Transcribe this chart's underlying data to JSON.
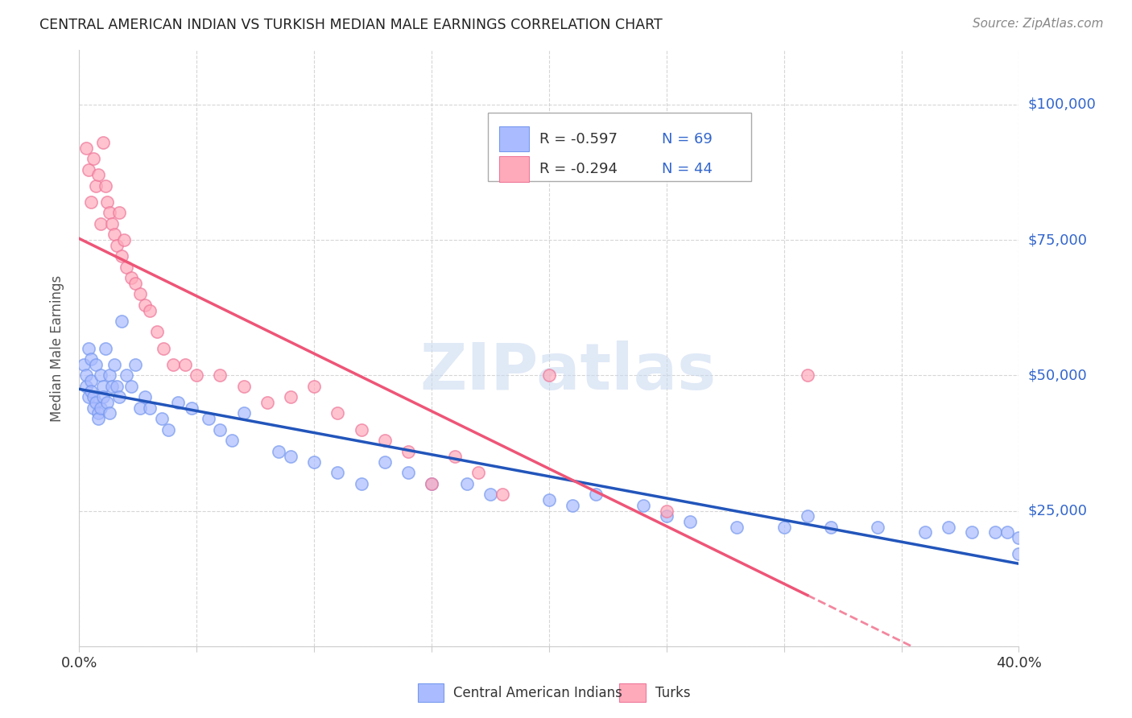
{
  "title": "CENTRAL AMERICAN INDIAN VS TURKISH MEDIAN MALE EARNINGS CORRELATION CHART",
  "source": "Source: ZipAtlas.com",
  "ylabel": "Median Male Earnings",
  "xlim": [
    0.0,
    0.4
  ],
  "ylim": [
    0,
    110000
  ],
  "yticks": [
    0,
    25000,
    50000,
    75000,
    100000
  ],
  "xticks": [
    0.0,
    0.05,
    0.1,
    0.15,
    0.2,
    0.25,
    0.3,
    0.35,
    0.4
  ],
  "background_color": "#ffffff",
  "grid_color": "#cccccc",
  "blue_face_color": "#aabbff",
  "blue_edge_color": "#7799ee",
  "pink_face_color": "#ffaabb",
  "pink_edge_color": "#ee7799",
  "blue_line_color": "#2255bb",
  "pink_line_color": "#ee5577",
  "watermark": "ZIPatlas",
  "legend_R1": "-0.597",
  "legend_N1": "69",
  "legend_R2": "-0.294",
  "legend_N2": "44",
  "label1": "Central American Indians",
  "label2": "Turks",
  "ytick_right_labels": [
    "",
    "$25,000",
    "$50,000",
    "$75,000",
    "$100,000"
  ],
  "ytick_right_color": "#3366cc",
  "blue_scatter_x": [
    0.002,
    0.003,
    0.003,
    0.004,
    0.004,
    0.005,
    0.005,
    0.005,
    0.006,
    0.006,
    0.007,
    0.007,
    0.008,
    0.008,
    0.009,
    0.009,
    0.01,
    0.01,
    0.011,
    0.012,
    0.013,
    0.013,
    0.014,
    0.015,
    0.016,
    0.017,
    0.018,
    0.02,
    0.022,
    0.024,
    0.026,
    0.028,
    0.03,
    0.035,
    0.038,
    0.042,
    0.048,
    0.055,
    0.06,
    0.065,
    0.07,
    0.085,
    0.09,
    0.1,
    0.11,
    0.12,
    0.13,
    0.14,
    0.15,
    0.165,
    0.175,
    0.2,
    0.21,
    0.22,
    0.24,
    0.25,
    0.26,
    0.28,
    0.3,
    0.31,
    0.32,
    0.34,
    0.36,
    0.37,
    0.38,
    0.39,
    0.395,
    0.4,
    0.4
  ],
  "blue_scatter_y": [
    52000,
    50000,
    48000,
    55000,
    46000,
    53000,
    49000,
    47000,
    46000,
    44000,
    52000,
    45000,
    43000,
    42000,
    50000,
    44000,
    48000,
    46000,
    55000,
    45000,
    43000,
    50000,
    48000,
    52000,
    48000,
    46000,
    60000,
    50000,
    48000,
    52000,
    44000,
    46000,
    44000,
    42000,
    40000,
    45000,
    44000,
    42000,
    40000,
    38000,
    43000,
    36000,
    35000,
    34000,
    32000,
    30000,
    34000,
    32000,
    30000,
    30000,
    28000,
    27000,
    26000,
    28000,
    26000,
    24000,
    23000,
    22000,
    22000,
    24000,
    22000,
    22000,
    21000,
    22000,
    21000,
    21000,
    21000,
    20000,
    17000
  ],
  "pink_scatter_x": [
    0.003,
    0.004,
    0.005,
    0.006,
    0.007,
    0.008,
    0.009,
    0.01,
    0.011,
    0.012,
    0.013,
    0.014,
    0.015,
    0.016,
    0.017,
    0.018,
    0.019,
    0.02,
    0.022,
    0.024,
    0.026,
    0.028,
    0.03,
    0.033,
    0.036,
    0.04,
    0.045,
    0.05,
    0.06,
    0.07,
    0.08,
    0.09,
    0.1,
    0.11,
    0.12,
    0.13,
    0.14,
    0.15,
    0.16,
    0.17,
    0.18,
    0.2,
    0.25,
    0.31
  ],
  "pink_scatter_y": [
    92000,
    88000,
    82000,
    90000,
    85000,
    87000,
    78000,
    93000,
    85000,
    82000,
    80000,
    78000,
    76000,
    74000,
    80000,
    72000,
    75000,
    70000,
    68000,
    67000,
    65000,
    63000,
    62000,
    58000,
    55000,
    52000,
    52000,
    50000,
    50000,
    48000,
    45000,
    46000,
    48000,
    43000,
    40000,
    38000,
    36000,
    30000,
    35000,
    32000,
    28000,
    50000,
    25000,
    50000
  ]
}
